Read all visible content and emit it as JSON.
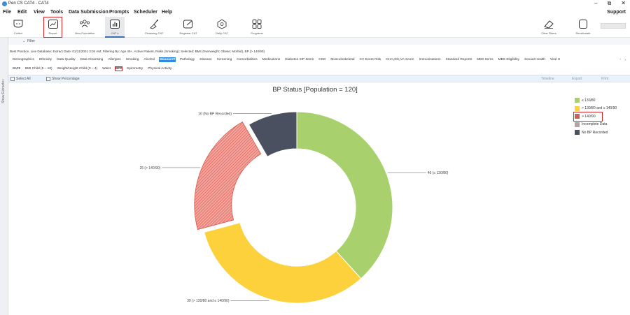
{
  "window": {
    "title": "Pen CS CAT4 - CAT4"
  },
  "menu": [
    "File",
    "Edit",
    "View",
    "Tools",
    "Data Submission",
    "Prompts",
    "Scheduler",
    "Help"
  ],
  "menu_right": "Support",
  "ribbon": {
    "collect": "Collect",
    "report": "Report",
    "view_population": "View Population",
    "cat4": "CAT 4",
    "cleansing": "Cleansing CAT",
    "registrar": "Registrar CAT",
    "daily": "Daily CAT",
    "programs": "Programs",
    "clear_filters": "Clear Filters",
    "recalculate": "Recalculate"
  },
  "sidebar": {
    "label": "Show Extracts"
  },
  "filter": {
    "label": "Filter"
  },
  "info_line": "Best Practice, Live Database; Extract Date: 01/11/2021 3:04 AM; Filtering By: Age 45+, Active Patient, Risks (Smoking); Selected: BMI (Overweight; Obese; Morbid), BP (> 140/90)",
  "tabs": [
    "Demographics",
    "Ethnicity",
    "Data Quality",
    "Data Cleansing",
    "Allergies",
    "Smoking",
    "Alcohol",
    "Measure▾",
    "Pathology",
    "Disease",
    "Screening",
    "Comorbidities",
    "Medications",
    "Diabetes SIP Items",
    "CKD",
    "Musculoskeletal",
    "CV Event Risk",
    "CHA₂DS₂VA Score",
    "Immunisations",
    "Standard Reports",
    "MBS Items",
    "MBS Eligibility",
    "Sexual Health",
    "Viral H"
  ],
  "selected_tab": "Measure▾",
  "subtabs": [
    "BMI▾",
    "BMI Child (5 – 18)",
    "Weight/Height Child (0 – 4)",
    "Waist",
    "BP▾",
    "Spirometry",
    "Physical Activity"
  ],
  "selected_subtab": "BP▾",
  "options": {
    "select_all": "Select All",
    "show_percentage": "Show Percentage",
    "timeline": "Timeline",
    "export": "Export",
    "print": "Print"
  },
  "chart_data": {
    "type": "pie",
    "donut": true,
    "title": "BP Status [Population = 120]",
    "series": [
      {
        "name": "≤ 130/80",
        "value": 46,
        "color": "#a8d16e",
        "data_label": "46 (≤ 130/80)"
      },
      {
        "name": "> 130/80 and ≤ 140/90",
        "value": 39,
        "color": "#fdd13b",
        "data_label": "39 (> 130/80 and ≤ 140/90)"
      },
      {
        "name": "> 140/90",
        "value": 25,
        "color": "#f08a80",
        "data_label": "25 (> 140/90)",
        "selected": true
      },
      {
        "name": "Incomplete Data",
        "value": 0,
        "color": "#b7a1a6",
        "data_label": ""
      },
      {
        "name": "No BP Recorded",
        "value": 10,
        "color": "#4a5060",
        "data_label": "10 (No BP Recorded)"
      }
    ],
    "legend_position": "top-right"
  }
}
